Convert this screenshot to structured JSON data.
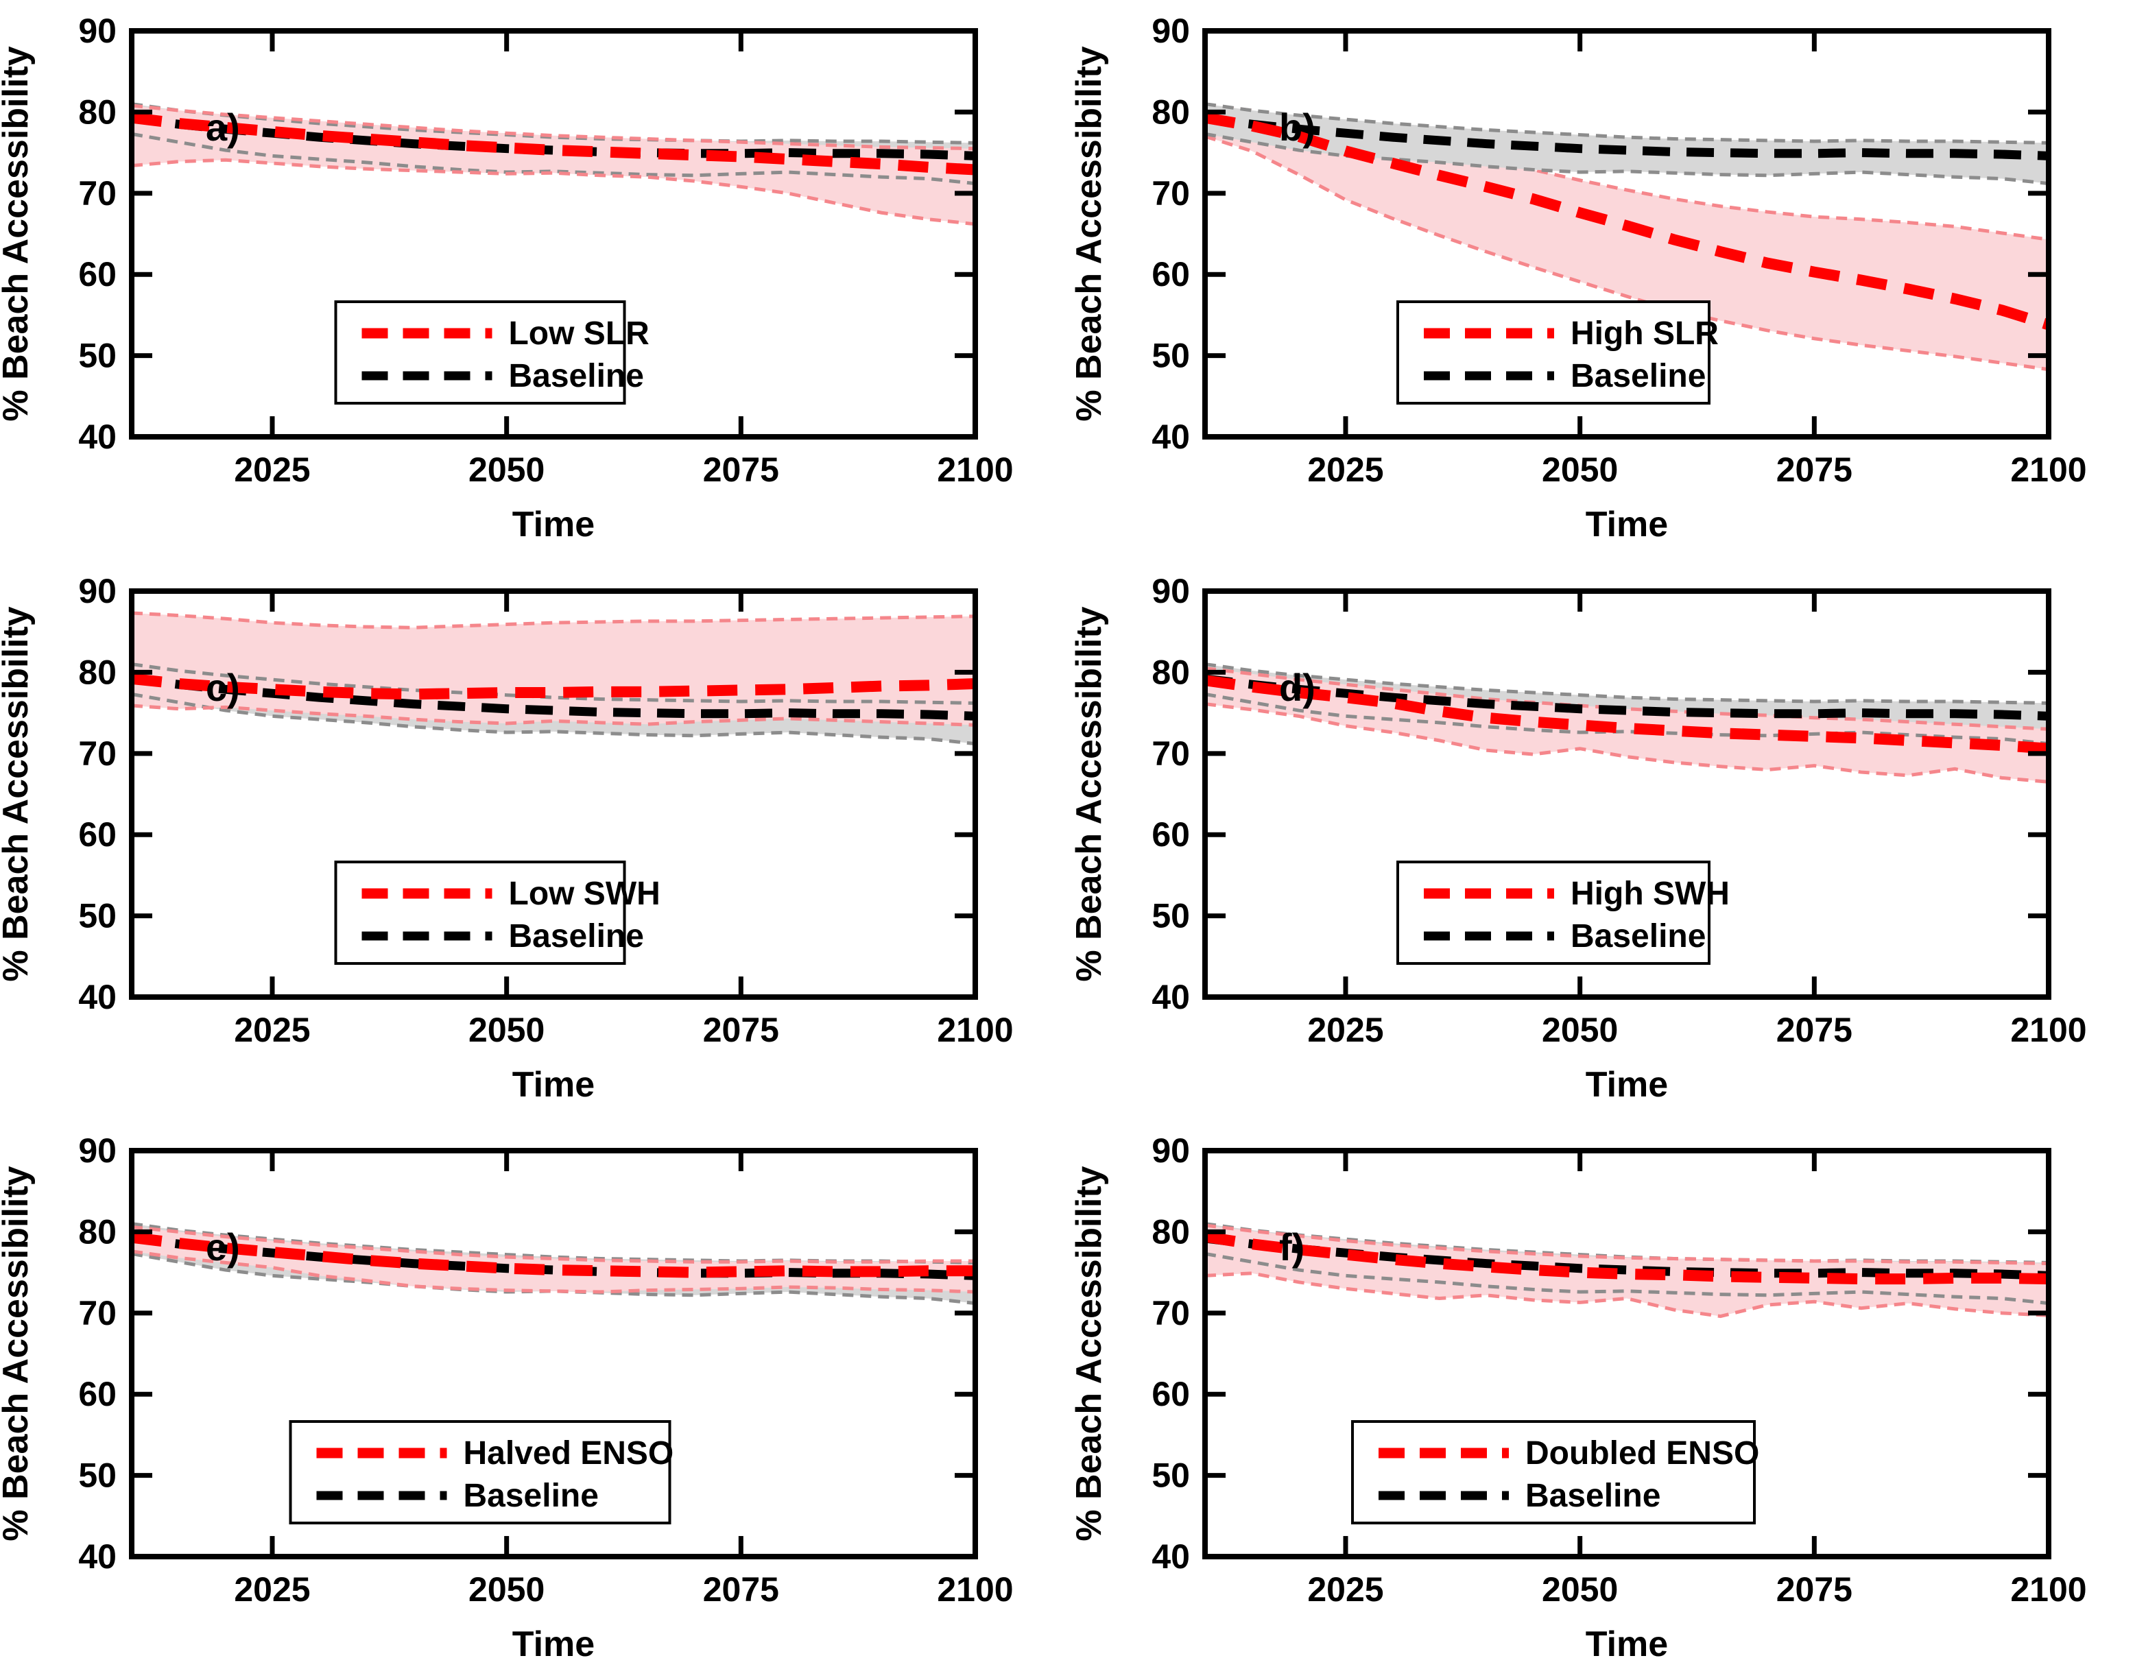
{
  "figure": {
    "xlabel": "Time",
    "ylabel": "% Beach Accessibility",
    "x_ticks": [
      2025,
      2050,
      2075,
      2100
    ],
    "y_ticks": [
      40,
      50,
      60,
      70,
      80,
      90
    ],
    "x_range": [
      2010,
      2100
    ],
    "y_range": [
      40,
      90
    ],
    "grid": false,
    "legend_position": "lower-center",
    "colors": {
      "scenario_line": "#ff0000",
      "scenario_band_fill": "#fbd7da",
      "scenario_band_edge": "#f5868b",
      "baseline_line": "#000000",
      "baseline_band_fill": "#d7d7d7",
      "baseline_band_edge": "#8c8c8c",
      "axis": "#000000",
      "legend_background": "#ffffff"
    }
  },
  "chart_data": [
    {
      "type": "line",
      "panel_label": "a)",
      "xlabel": "Time",
      "ylabel": "% Beach Accessibility",
      "xlim": [
        2010,
        2100
      ],
      "ylim": [
        40,
        90
      ],
      "baseline_on_top": false,
      "x": [
        2010,
        2015,
        2020,
        2025,
        2030,
        2035,
        2040,
        2045,
        2050,
        2055,
        2060,
        2065,
        2070,
        2075,
        2080,
        2085,
        2090,
        2095,
        2100
      ],
      "series": [
        {
          "name": "Low SLR",
          "role": "scenario",
          "values": [
            79.3,
            78.6,
            78.1,
            77.6,
            77.1,
            76.7,
            76.3,
            75.9,
            75.6,
            75.3,
            75.1,
            74.9,
            74.7,
            74.5,
            74.2,
            73.9,
            73.6,
            73.2,
            72.9
          ],
          "band_upper": [
            80.8,
            80.2,
            79.7,
            79.3,
            78.9,
            78.5,
            78.1,
            77.7,
            77.4,
            77.1,
            76.9,
            76.7,
            76.5,
            76.3,
            76.1,
            75.9,
            75.7,
            75.6,
            75.5
          ],
          "band_lower": [
            73.4,
            73.9,
            74.1,
            73.7,
            73.3,
            73.0,
            72.8,
            72.6,
            72.4,
            72.5,
            72.2,
            72.0,
            71.5,
            70.8,
            70.0,
            68.8,
            67.6,
            66.8,
            66.2
          ]
        },
        {
          "name": "Baseline",
          "role": "baseline",
          "values": [
            79.2,
            78.5,
            77.9,
            77.4,
            76.9,
            76.5,
            76.1,
            75.8,
            75.5,
            75.3,
            75.1,
            75.0,
            74.9,
            74.9,
            75.0,
            74.9,
            74.9,
            74.8,
            74.6
          ],
          "band_upper": [
            81.0,
            80.2,
            79.6,
            79.1,
            78.6,
            78.2,
            77.8,
            77.5,
            77.2,
            76.9,
            76.7,
            76.6,
            76.5,
            76.4,
            76.5,
            76.4,
            76.4,
            76.3,
            76.2
          ],
          "band_lower": [
            77.3,
            76.3,
            75.3,
            74.6,
            74.2,
            73.8,
            73.3,
            72.9,
            72.6,
            72.7,
            72.5,
            72.3,
            72.2,
            72.4,
            72.6,
            72.3,
            72.0,
            71.8,
            71.2
          ]
        }
      ]
    },
    {
      "type": "line",
      "panel_label": "b)",
      "xlabel": "Time",
      "ylabel": "% Beach Accessibility",
      "xlim": [
        2010,
        2100
      ],
      "ylim": [
        40,
        90
      ],
      "baseline_on_top": true,
      "x": [
        2010,
        2015,
        2020,
        2025,
        2030,
        2035,
        2040,
        2045,
        2050,
        2055,
        2060,
        2065,
        2070,
        2075,
        2080,
        2085,
        2090,
        2095,
        2100
      ],
      "series": [
        {
          "name": "High SLR",
          "role": "scenario",
          "values": [
            79.3,
            78.3,
            77.0,
            75.2,
            73.7,
            72.2,
            70.8,
            69.3,
            67.6,
            66.0,
            64.3,
            62.8,
            61.4,
            60.3,
            59.3,
            58.2,
            57.0,
            55.6,
            53.8
          ],
          "band_upper": [
            80.9,
            80.2,
            79.3,
            78.0,
            76.8,
            75.6,
            74.3,
            72.9,
            71.6,
            70.4,
            69.3,
            68.4,
            67.7,
            67.1,
            66.8,
            66.4,
            65.9,
            65.1,
            64.3
          ],
          "band_lower": [
            77.0,
            75.2,
            72.3,
            69.2,
            66.9,
            64.8,
            62.8,
            60.9,
            59.1,
            57.3,
            55.6,
            54.3,
            53.1,
            52.1,
            51.3,
            50.6,
            49.9,
            49.1,
            48.3
          ]
        },
        {
          "name": "Baseline",
          "role": "baseline",
          "values": [
            79.2,
            78.5,
            77.9,
            77.4,
            76.9,
            76.5,
            76.1,
            75.8,
            75.5,
            75.3,
            75.1,
            75.0,
            74.9,
            74.9,
            75.0,
            74.9,
            74.9,
            74.8,
            74.6
          ],
          "band_upper": [
            81.0,
            80.2,
            79.6,
            79.1,
            78.6,
            78.2,
            77.8,
            77.5,
            77.2,
            76.9,
            76.7,
            76.6,
            76.5,
            76.4,
            76.5,
            76.4,
            76.4,
            76.3,
            76.2
          ],
          "band_lower": [
            77.3,
            76.3,
            75.3,
            74.6,
            74.2,
            73.8,
            73.3,
            72.9,
            72.6,
            72.7,
            72.5,
            72.3,
            72.2,
            72.4,
            72.6,
            72.3,
            72.0,
            71.8,
            71.2
          ]
        }
      ]
    },
    {
      "type": "line",
      "panel_label": "c)",
      "xlabel": "Time",
      "ylabel": "% Beach Accessibility",
      "xlim": [
        2010,
        2100
      ],
      "ylim": [
        40,
        90
      ],
      "baseline_on_top": false,
      "x": [
        2010,
        2015,
        2020,
        2025,
        2030,
        2035,
        2040,
        2045,
        2050,
        2055,
        2060,
        2065,
        2070,
        2075,
        2080,
        2085,
        2090,
        2095,
        2100
      ],
      "series": [
        {
          "name": "Low SWH",
          "role": "scenario",
          "values": [
            79.2,
            78.6,
            78.2,
            77.9,
            77.6,
            77.4,
            77.3,
            77.4,
            77.5,
            77.5,
            77.6,
            77.6,
            77.7,
            77.8,
            77.9,
            78.1,
            78.3,
            78.4,
            78.6
          ],
          "band_upper": [
            87.3,
            87.0,
            86.6,
            86.1,
            85.8,
            85.6,
            85.5,
            85.7,
            85.9,
            86.1,
            86.2,
            86.3,
            86.3,
            86.4,
            86.5,
            86.6,
            86.7,
            86.8,
            86.9
          ],
          "band_lower": [
            75.9,
            75.5,
            75.7,
            75.3,
            74.9,
            74.6,
            74.2,
            73.9,
            73.7,
            74.0,
            73.8,
            73.6,
            73.9,
            74.1,
            74.3,
            74.1,
            73.9,
            73.7,
            73.5
          ]
        },
        {
          "name": "Baseline",
          "role": "baseline",
          "values": [
            79.2,
            78.5,
            77.9,
            77.4,
            76.9,
            76.5,
            76.1,
            75.8,
            75.5,
            75.3,
            75.1,
            75.0,
            74.9,
            74.9,
            75.0,
            74.9,
            74.9,
            74.8,
            74.6
          ],
          "band_upper": [
            81.0,
            80.2,
            79.6,
            79.1,
            78.6,
            78.2,
            77.8,
            77.5,
            77.2,
            76.9,
            76.7,
            76.6,
            76.5,
            76.4,
            76.5,
            76.4,
            76.4,
            76.3,
            76.2
          ],
          "band_lower": [
            77.3,
            76.3,
            75.3,
            74.6,
            74.2,
            73.8,
            73.3,
            72.9,
            72.6,
            72.7,
            72.5,
            72.3,
            72.2,
            72.4,
            72.6,
            72.3,
            72.0,
            71.8,
            71.2
          ]
        }
      ]
    },
    {
      "type": "line",
      "panel_label": "d)",
      "xlabel": "Time",
      "ylabel": "% Beach Accessibility",
      "xlim": [
        2010,
        2100
      ],
      "ylim": [
        40,
        90
      ],
      "baseline_on_top": false,
      "x": [
        2010,
        2015,
        2020,
        2025,
        2030,
        2035,
        2040,
        2045,
        2050,
        2055,
        2060,
        2065,
        2070,
        2075,
        2080,
        2085,
        2090,
        2095,
        2100
      ],
      "series": [
        {
          "name": "High SWH",
          "role": "scenario",
          "values": [
            79.0,
            78.2,
            77.5,
            76.9,
            76.2,
            75.2,
            74.4,
            73.9,
            73.5,
            73.1,
            72.8,
            72.5,
            72.3,
            72.1,
            71.9,
            71.6,
            71.3,
            71.0,
            70.6
          ],
          "band_upper": [
            80.5,
            79.8,
            79.1,
            78.5,
            77.9,
            77.3,
            76.7,
            76.3,
            75.9,
            75.5,
            75.2,
            74.9,
            74.7,
            74.4,
            74.2,
            73.9,
            73.6,
            73.3,
            73.0
          ],
          "band_lower": [
            76.1,
            75.4,
            74.6,
            73.4,
            72.6,
            71.6,
            70.4,
            69.9,
            70.6,
            69.6,
            68.9,
            68.4,
            68.0,
            68.5,
            67.7,
            67.3,
            68.1,
            67.0,
            66.5
          ]
        },
        {
          "name": "Baseline",
          "role": "baseline",
          "values": [
            79.2,
            78.5,
            77.9,
            77.4,
            76.9,
            76.5,
            76.1,
            75.8,
            75.5,
            75.3,
            75.1,
            75.0,
            74.9,
            74.9,
            75.0,
            74.9,
            74.9,
            74.8,
            74.6
          ],
          "band_upper": [
            81.0,
            80.2,
            79.6,
            79.1,
            78.6,
            78.2,
            77.8,
            77.5,
            77.2,
            76.9,
            76.7,
            76.6,
            76.5,
            76.4,
            76.5,
            76.4,
            76.4,
            76.3,
            76.2
          ],
          "band_lower": [
            77.3,
            76.3,
            75.3,
            74.6,
            74.2,
            73.8,
            73.3,
            72.9,
            72.6,
            72.7,
            72.5,
            72.3,
            72.2,
            72.4,
            72.6,
            72.3,
            72.0,
            71.8,
            71.2
          ]
        }
      ]
    },
    {
      "type": "line",
      "panel_label": "e)",
      "xlabel": "Time",
      "ylabel": "% Beach Accessibility",
      "xlim": [
        2010,
        2100
      ],
      "ylim": [
        40,
        90
      ],
      "baseline_on_top": false,
      "x": [
        2010,
        2015,
        2020,
        2025,
        2030,
        2035,
        2040,
        2045,
        2050,
        2055,
        2060,
        2065,
        2070,
        2075,
        2080,
        2085,
        2090,
        2095,
        2100
      ],
      "series": [
        {
          "name": "Halved ENSO",
          "role": "scenario",
          "values": [
            79.3,
            78.6,
            78.0,
            77.5,
            77.0,
            76.5,
            76.1,
            75.8,
            75.5,
            75.3,
            75.2,
            75.1,
            75.0,
            75.1,
            75.2,
            75.1,
            75.1,
            75.2,
            75.2
          ],
          "band_upper": [
            80.6,
            80.0,
            79.4,
            78.9,
            78.4,
            78.0,
            77.6,
            77.2,
            76.9,
            76.7,
            76.5,
            76.4,
            76.3,
            76.3,
            76.4,
            76.3,
            76.3,
            76.4,
            76.4
          ],
          "band_lower": [
            77.6,
            76.8,
            76.2,
            75.6,
            74.6,
            74.0,
            73.3,
            73.0,
            72.8,
            72.7,
            72.6,
            72.8,
            72.9,
            73.0,
            73.2,
            73.1,
            72.9,
            72.8,
            72.6
          ]
        },
        {
          "name": "Baseline",
          "role": "baseline",
          "values": [
            79.2,
            78.5,
            77.9,
            77.4,
            76.9,
            76.5,
            76.1,
            75.8,
            75.5,
            75.3,
            75.1,
            75.0,
            74.9,
            74.9,
            75.0,
            74.9,
            74.9,
            74.8,
            74.6
          ],
          "band_upper": [
            81.0,
            80.2,
            79.6,
            79.1,
            78.6,
            78.2,
            77.8,
            77.5,
            77.2,
            76.9,
            76.7,
            76.6,
            76.5,
            76.4,
            76.5,
            76.4,
            76.4,
            76.3,
            76.2
          ],
          "band_lower": [
            77.3,
            76.3,
            75.3,
            74.6,
            74.2,
            73.8,
            73.3,
            72.9,
            72.6,
            72.7,
            72.5,
            72.3,
            72.2,
            72.4,
            72.6,
            72.3,
            72.0,
            71.8,
            71.2
          ]
        }
      ]
    },
    {
      "type": "line",
      "panel_label": "f)",
      "xlabel": "Time",
      "ylabel": "% Beach Accessibility",
      "xlim": [
        2010,
        2100
      ],
      "ylim": [
        40,
        90
      ],
      "baseline_on_top": false,
      "x": [
        2010,
        2015,
        2020,
        2025,
        2030,
        2035,
        2040,
        2045,
        2050,
        2055,
        2060,
        2065,
        2070,
        2075,
        2080,
        2085,
        2090,
        2095,
        2100
      ],
      "series": [
        {
          "name": "Doubled ENSO",
          "role": "scenario",
          "values": [
            79.4,
            78.5,
            77.8,
            77.2,
            76.6,
            76.1,
            75.7,
            75.3,
            75.0,
            74.8,
            74.7,
            74.5,
            74.4,
            74.3,
            74.2,
            74.2,
            74.3,
            74.3,
            74.2
          ],
          "band_upper": [
            80.8,
            80.1,
            79.5,
            78.9,
            78.4,
            78.0,
            77.6,
            77.3,
            77.0,
            76.8,
            76.7,
            76.6,
            76.5,
            76.4,
            76.4,
            76.3,
            76.3,
            76.2,
            76.1
          ],
          "band_lower": [
            74.6,
            74.9,
            73.8,
            73.0,
            72.4,
            71.8,
            72.2,
            71.6,
            71.3,
            71.8,
            70.4,
            69.6,
            71.0,
            71.4,
            70.6,
            71.2,
            70.5,
            70.0,
            69.7
          ]
        },
        {
          "name": "Baseline",
          "role": "baseline",
          "values": [
            79.2,
            78.5,
            77.9,
            77.4,
            76.9,
            76.5,
            76.1,
            75.8,
            75.5,
            75.3,
            75.1,
            75.0,
            74.9,
            74.9,
            75.0,
            74.9,
            74.9,
            74.8,
            74.6
          ],
          "band_upper": [
            81.0,
            80.2,
            79.6,
            79.1,
            78.6,
            78.2,
            77.8,
            77.5,
            77.2,
            76.9,
            76.7,
            76.6,
            76.5,
            76.4,
            76.5,
            76.4,
            76.4,
            76.3,
            76.2
          ],
          "band_lower": [
            77.3,
            76.3,
            75.3,
            74.6,
            74.2,
            73.8,
            73.3,
            72.9,
            72.6,
            72.7,
            72.5,
            72.3,
            72.2,
            72.4,
            72.6,
            72.3,
            72.0,
            71.8,
            71.2
          ]
        }
      ]
    }
  ]
}
